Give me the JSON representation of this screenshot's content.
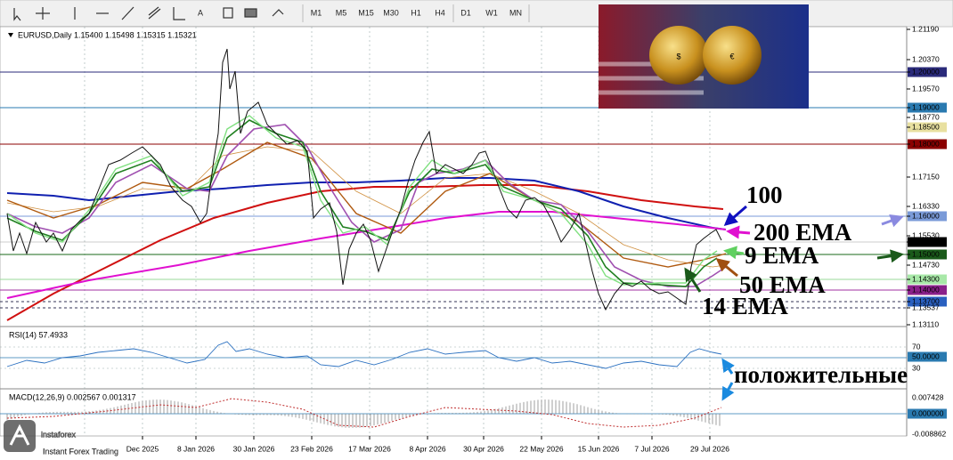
{
  "toolbar": {
    "timeframes": [
      "M1",
      "M5",
      "M15",
      "M30",
      "H1",
      "H4",
      "D1",
      "W1",
      "MN"
    ]
  },
  "chart": {
    "header": "EURUSD,Daily  1.15400 1.15498 1.15315 1.15321",
    "price_axis": [
      "1.21190",
      "1.20370",
      "1.20000",
      "1.19570",
      "1.19000",
      "1.18770",
      "1.18500",
      "1.18000",
      "1.17150",
      "1.16330",
      "1.16000",
      "1.15530",
      "1.15321",
      "1.15000",
      "1.14730",
      "1.14300",
      "1.14000",
      "1.13700",
      "1.13537",
      "1.13110"
    ],
    "dates": [
      "Dec 2025",
      "8 Jan 2026",
      "30 Jan 2026",
      "23 Feb 2026",
      "17 Mar 2026",
      "8 Apr 2026",
      "30 Apr 2026",
      "22 May 2026",
      "15 Jun 2026",
      "7 Jul 2026",
      "29 Jul 2026"
    ],
    "annotations": [
      "100",
      "200 EMA",
      "9 EMA",
      "50 EMA",
      "14 EMA",
      "положительные"
    ]
  },
  "rsi": {
    "label": "RSI(14) 57.4933",
    "axis": [
      "70",
      "50.0000",
      "30"
    ]
  },
  "macd": {
    "label": "MACD(12,26,9) 0.002567 0.001317",
    "axis": [
      "0.007428",
      "0.000000",
      "-0.008862"
    ]
  },
  "logo": {
    "name": "instaforex",
    "tagline": "Instant Forex Trading"
  }
}
